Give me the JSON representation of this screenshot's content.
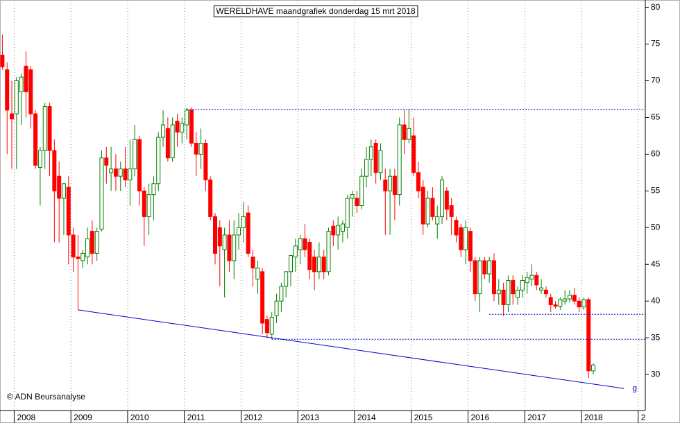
{
  "chart_data": {
    "type": "candlestick",
    "title": "WERELDHAVE maandgrafiek donderdag 15 mrt 2018",
    "copyright": "© ADN Beursanalyse",
    "up_color": "#008000",
    "down_color": "#ff0000",
    "line_color": "#0000cc",
    "open": [
      73.5,
      71.5,
      65.5,
      65.5,
      68.5,
      72,
      71.5,
      65.5,
      58.2,
      60.5,
      66.5,
      60.5,
      57,
      54,
      55.5,
      49,
      46,
      45.5,
      46,
      49.5,
      46.5,
      49.8,
      59.5,
      57.5,
      58,
      57,
      58,
      56.5,
      58,
      62,
      55,
      51.5,
      54.5,
      56,
      62.3,
      63.5,
      59.5,
      64.5,
      63,
      64,
      66,
      61.5,
      60,
      61.5,
      56.5,
      51.5,
      50,
      47,
      49,
      45.5,
      49,
      50,
      52,
      46,
      43,
      44,
      37.5,
      35.5,
      38,
      40,
      42,
      44,
      46,
      47,
      48.5,
      48,
      46,
      44,
      46,
      44,
      50.2,
      49,
      49.5,
      50,
      54,
      54,
      53,
      57,
      59.3,
      61.5,
      57.5,
      56.5,
      55,
      57,
      54.5,
      64,
      62,
      62.5,
      57.5,
      55.5,
      50.5,
      54,
      50.5,
      51.5,
      55,
      53,
      51,
      50,
      47,
      49.5,
      45.5,
      41,
      45.5,
      43.7,
      45.5,
      41,
      41.5,
      39.5,
      42.8,
      40.5,
      41.5,
      42.5,
      43,
      43.5,
      41.5,
      41.5,
      40.5,
      39.5,
      39.3,
      40,
      40.3,
      40.8,
      40,
      39.2,
      40.2,
      30.5
    ],
    "high": [
      76.3,
      72.5,
      70,
      70.5,
      71,
      74,
      72,
      66,
      61,
      67,
      67,
      62,
      59,
      56,
      57,
      50,
      49,
      47,
      50,
      51,
      50,
      60.5,
      61,
      61,
      60,
      59,
      61,
      62,
      64,
      62.5,
      55.5,
      56,
      57,
      63,
      66,
      65,
      65,
      65.5,
      65,
      66.3,
      66.4,
      63,
      63.5,
      62,
      57,
      52,
      51,
      50,
      51,
      51,
      52,
      53.5,
      53,
      47,
      45.5,
      44.5,
      38,
      38.5,
      41,
      42.5,
      44,
      46,
      48.5,
      49,
      50.5,
      48.5,
      47,
      48,
      47,
      50,
      51,
      51.5,
      51,
      54.5,
      55,
      55,
      58,
      61,
      62,
      62,
      61.5,
      58,
      58,
      58,
      65,
      66,
      66.2,
      65,
      59,
      56.5,
      55,
      55.5,
      53,
      57,
      55.5,
      54,
      51.5,
      50.5,
      51,
      50,
      46,
      46,
      46,
      46,
      46.5,
      43,
      42.5,
      43.5,
      43.5,
      42,
      43.5,
      44,
      45,
      44,
      43,
      42,
      41,
      40,
      40.5,
      41.5,
      41.5,
      41.8,
      40.5,
      40.5,
      40.5,
      31.5
    ],
    "low": [
      71.5,
      60,
      58,
      58,
      64,
      65,
      63.5,
      58,
      53,
      58,
      57,
      48,
      48,
      49,
      45,
      44,
      38.8,
      44.5,
      45,
      45,
      45.5,
      49.5,
      56,
      55,
      55,
      55,
      55.5,
      53,
      57,
      53,
      47.5,
      49,
      51,
      55,
      61,
      59,
      59,
      61,
      61.5,
      62,
      61,
      57,
      58,
      55,
      51,
      45,
      42,
      40.5,
      44,
      43,
      47,
      48,
      46,
      42,
      41,
      35.5,
      35,
      34.8,
      37,
      38.5,
      40.5,
      42,
      44,
      45,
      46,
      43,
      41.5,
      43,
      43,
      43.5,
      47.5,
      47,
      48,
      48.5,
      51.5,
      52,
      52.5,
      55.5,
      57,
      56,
      56.5,
      49,
      49,
      51,
      53,
      60,
      61.5,
      57,
      54,
      49,
      50,
      51,
      48.5,
      50.5,
      51,
      49,
      48,
      46,
      45,
      44,
      40,
      38.5,
      43,
      42.5,
      40,
      39.5,
      38,
      38.5,
      39.5,
      39.5,
      40.5,
      41,
      42,
      41.5,
      41,
      40.5,
      38.5,
      39,
      38.8,
      39.5,
      39.8,
      39.5,
      38.5,
      38.8,
      29.5,
      30
    ],
    "close": [
      71.9,
      66,
      64.8,
      70,
      70.5,
      68.5,
      65.5,
      58.5,
      60.5,
      66.5,
      60.5,
      55,
      54,
      56,
      49,
      46,
      45.8,
      46.5,
      48.5,
      46.5,
      49.5,
      59.5,
      58.5,
      58,
      57,
      58,
      56.5,
      58,
      62,
      55,
      51.5,
      54.5,
      56,
      62.3,
      64,
      59.5,
      64,
      63,
      64.2,
      66,
      61.5,
      60,
      61.5,
      56.5,
      51.5,
      46.5,
      47.5,
      49,
      45.5,
      49,
      50,
      51.5,
      46.5,
      44.5,
      44.5,
      37,
      35.7,
      37.8,
      40,
      42,
      44,
      46.2,
      47.5,
      48.5,
      47,
      44.3,
      44,
      46,
      44,
      49.5,
      49,
      50.3,
      50.5,
      54,
      54.5,
      53,
      57,
      59.3,
      61,
      57.5,
      60.5,
      55,
      57,
      54.5,
      64,
      62,
      63.5,
      57.5,
      55,
      50.5,
      54,
      51.5,
      51.5,
      56.5,
      52.5,
      51.5,
      49,
      47,
      50,
      45.5,
      41,
      45.5,
      43.7,
      45.5,
      41,
      41.5,
      39.5,
      42.8,
      41,
      41.5,
      42.8,
      43.2,
      43.5,
      42.2,
      41.8,
      41,
      39.5,
      39.3,
      40.2,
      40.3,
      40.8,
      40,
      39.2,
      40.2,
      30.5,
      31.3
    ],
    "xlim": [
      -0.5,
      136
    ],
    "xticks": [
      {
        "value": 2.5,
        "label": "2008"
      },
      {
        "value": 14.5,
        "label": "2009"
      },
      {
        "value": 26.5,
        "label": "2010"
      },
      {
        "value": 38.5,
        "label": "2011"
      },
      {
        "value": 50.5,
        "label": "2012"
      },
      {
        "value": 62.5,
        "label": "2013"
      },
      {
        "value": 74.5,
        "label": "2014"
      },
      {
        "value": 86.5,
        "label": "2015"
      },
      {
        "value": 98.5,
        "label": "2016"
      },
      {
        "value": 110.5,
        "label": "2017"
      },
      {
        "value": 122.5,
        "label": "2018"
      },
      {
        "value": 134.5,
        "label": "2"
      }
    ],
    "ylim": [
      25.1,
      81.0
    ],
    "yticks": [
      30,
      35,
      40,
      45,
      50,
      55,
      60,
      65,
      70,
      75,
      80
    ],
    "trendline": {
      "x": [
        16,
        131.5
      ],
      "y": [
        38.8,
        28.1
      ],
      "label": "g"
    },
    "hlines": [
      {
        "y": 66.1,
        "x0": 39
      },
      {
        "y": 38.2,
        "x0": 103
      },
      {
        "y": 34.8,
        "x0": 57
      }
    ]
  }
}
